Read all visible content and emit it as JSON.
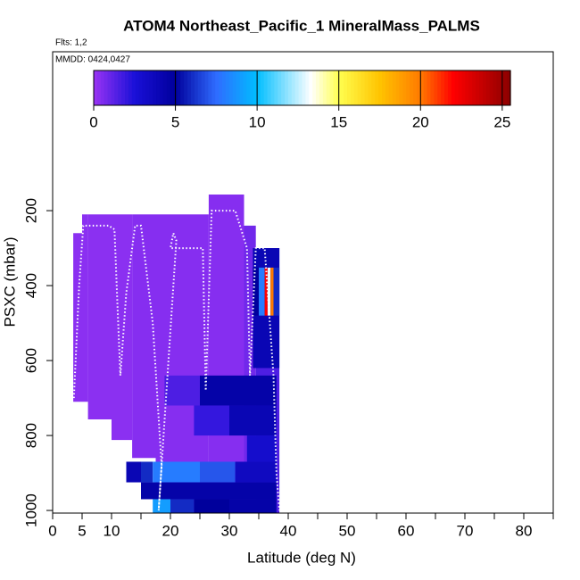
{
  "chart_data": {
    "type": "heatmap",
    "title": "ATOM4 Northeast_Pacific_1 MineralMass_PALMS",
    "flights_label": "Flts: 1,2",
    "dates_label": "MMDD: 0424,0427",
    "xlabel": "Latitude (deg N)",
    "ylabel": "PSXC (mbar)",
    "xlim": [
      0,
      85
    ],
    "xticks": [
      0,
      5,
      10,
      20,
      30,
      40,
      50,
      60,
      70,
      80
    ],
    "xminorticks": [
      15,
      25,
      35,
      45,
      55,
      65,
      75,
      85
    ],
    "ylim": [
      -224,
      1007
    ],
    "yticks": [
      200,
      400,
      600,
      800,
      1000
    ],
    "colorbar": {
      "lim": [
        0,
        25.5
      ],
      "ticks": [
        0,
        5,
        10,
        15,
        20,
        25
      ],
      "stops": [
        [
          0,
          "#9a34f4"
        ],
        [
          2.5,
          "#1a10d8"
        ],
        [
          5,
          "#00009c"
        ],
        [
          7.5,
          "#2f6cff"
        ],
        [
          10,
          "#00beff"
        ],
        [
          13.3,
          "#ffffff"
        ],
        [
          15,
          "#ffff50"
        ],
        [
          17.5,
          "#ffc400"
        ],
        [
          20,
          "#ff7a00"
        ],
        [
          22,
          "#ff0000"
        ],
        [
          25.5,
          "#8b0000"
        ]
      ]
    },
    "track_color": "#ffffff",
    "cells": [
      {
        "x": [
          3.5,
          5
        ],
        "y": [
          260,
          710
        ],
        "value": 0.3
      },
      {
        "x": [
          5,
          6
        ],
        "y": [
          210,
          710
        ],
        "value": 0.3
      },
      {
        "x": [
          6,
          10
        ],
        "y": [
          210,
          757
        ],
        "value": 0.3
      },
      {
        "x": [
          10,
          13.5
        ],
        "y": [
          210,
          812
        ],
        "value": 0.3
      },
      {
        "x": [
          13.5,
          17.5
        ],
        "y": [
          210,
          860
        ],
        "value": 0.4
      },
      {
        "x": [
          17.5,
          26.5
        ],
        "y": [
          210,
          1007
        ],
        "value": 0.4
      },
      {
        "x": [
          26.5,
          32.5
        ],
        "y": [
          157,
          1007
        ],
        "value": 0.4
      },
      {
        "x": [
          32.5,
          34.5
        ],
        "y": [
          240,
          1007
        ],
        "value": 0.8
      },
      {
        "x": [
          34.5,
          38.5
        ],
        "y": [
          300,
          1007
        ],
        "value": 1.5
      },
      {
        "x": [
          19,
          25
        ],
        "y": [
          640,
          720
        ],
        "value": 1.5
      },
      {
        "x": [
          25,
          38
        ],
        "y": [
          640,
          720
        ],
        "value": 4.5
      },
      {
        "x": [
          24,
          30
        ],
        "y": [
          720,
          800
        ],
        "value": 2
      },
      {
        "x": [
          30,
          38
        ],
        "y": [
          720,
          800
        ],
        "value": 4
      },
      {
        "x": [
          33,
          38
        ],
        "y": [
          800,
          870
        ],
        "value": 3
      },
      {
        "x": [
          12.5,
          15
        ],
        "y": [
          870,
          925
        ],
        "value": 4
      },
      {
        "x": [
          15,
          17
        ],
        "y": [
          870,
          925
        ],
        "value": 6
      },
      {
        "x": [
          17,
          25
        ],
        "y": [
          870,
          925
        ],
        "value": 8
      },
      {
        "x": [
          25,
          31
        ],
        "y": [
          870,
          925
        ],
        "value": 7
      },
      {
        "x": [
          31,
          38
        ],
        "y": [
          870,
          925
        ],
        "value": 3.5
      },
      {
        "x": [
          15,
          38
        ],
        "y": [
          925,
          970
        ],
        "value": 4.5
      },
      {
        "x": [
          17,
          20
        ],
        "y": [
          970,
          1007
        ],
        "value": 9
      },
      {
        "x": [
          20,
          24
        ],
        "y": [
          970,
          1007
        ],
        "value": 6
      },
      {
        "x": [
          24,
          30
        ],
        "y": [
          970,
          1007
        ],
        "value": 5
      },
      {
        "x": [
          30,
          38
        ],
        "y": [
          970,
          1007
        ],
        "value": 4.5
      },
      {
        "x": [
          34,
          38.5
        ],
        "y": [
          300,
          620
        ],
        "value": 4
      },
      {
        "x": [
          34,
          35
        ],
        "y": [
          352,
          480
        ],
        "value": 5
      },
      {
        "x": [
          35,
          36
        ],
        "y": [
          352,
          480
        ],
        "value": 8
      },
      {
        "x": [
          36,
          36.5
        ],
        "y": [
          352,
          480
        ],
        "value": 22
      },
      {
        "x": [
          36.5,
          37
        ],
        "y": [
          352,
          480
        ],
        "value": 13
      },
      {
        "x": [
          37,
          37.5
        ],
        "y": [
          352,
          480
        ],
        "value": 20
      },
      {
        "x": [
          37.5,
          38.5
        ],
        "y": [
          352,
          480
        ],
        "value": 6
      }
    ],
    "track": {
      "x": [
        3.6,
        4.5,
        5.2,
        9.5,
        10.5,
        11,
        11.5,
        12.5,
        14,
        15,
        17,
        18.5,
        18,
        19.5,
        21,
        20.5,
        20,
        22.5,
        24,
        25.5,
        26,
        27,
        31,
        33,
        33.5,
        34.5,
        36,
        37.5,
        38,
        38.5
      ],
      "y": [
        700,
        400,
        240,
        240,
        250,
        450,
        640,
        420,
        240,
        240,
        500,
        880,
        1000,
        640,
        280,
        260,
        300,
        300,
        300,
        300,
        680,
        200,
        200,
        300,
        640,
        300,
        300,
        640,
        900,
        1000
      ]
    }
  }
}
